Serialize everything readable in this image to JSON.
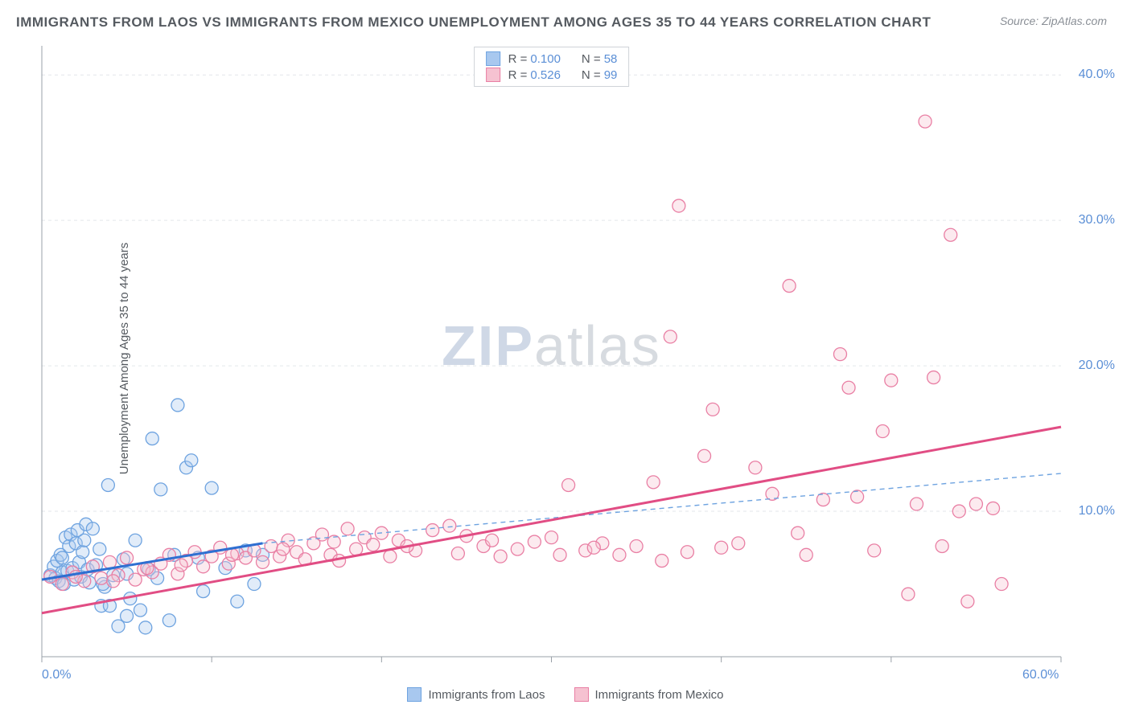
{
  "title": "IMMIGRANTS FROM LAOS VS IMMIGRANTS FROM MEXICO UNEMPLOYMENT AMONG AGES 35 TO 44 YEARS CORRELATION CHART",
  "source_label": "Source: ",
  "source_name": "ZipAtlas.com",
  "ylabel": "Unemployment Among Ages 35 to 44 years",
  "watermark_a": "ZIP",
  "watermark_b": "atlas",
  "chart": {
    "type": "scatter",
    "background_color": "#ffffff",
    "grid_color": "#e3e6ea",
    "axis_color": "#9aa0a8",
    "tick_font_color": "#5b8fd6",
    "tick_fontsize": 16,
    "title_fontsize": 17,
    "label_fontsize": 15,
    "xlim": [
      0,
      60
    ],
    "ylim": [
      0,
      42
    ],
    "x_ticks": [
      0,
      10,
      20,
      30,
      40,
      50,
      60
    ],
    "x_tick_labels_shown": {
      "0": "0.0%",
      "60": "60.0%"
    },
    "y_ticks": [
      10,
      20,
      30,
      40
    ],
    "y_tick_labels": {
      "10": "10.0%",
      "20": "20.0%",
      "30": "30.0%",
      "40": "40.0%"
    },
    "marker_radius": 8,
    "marker_fill_opacity": 0.35,
    "marker_stroke_width": 1.3,
    "series": [
      {
        "key": "laos",
        "label": "Immigrants from Laos",
        "color_fill": "#a8c8ef",
        "color_stroke": "#6ea3e0",
        "R": "0.100",
        "N": "58",
        "trend": {
          "x1": 0,
          "y1": 5.3,
          "x2": 13,
          "y2": 7.8,
          "color": "#2e6fd1",
          "width": 3,
          "dash": "none"
        },
        "trend_ext": {
          "x1": 13,
          "y1": 7.8,
          "x2": 60,
          "y2": 12.6,
          "color": "#6ea3e0",
          "width": 1.4,
          "dash": "6,5"
        },
        "points": [
          [
            0.5,
            5.6
          ],
          [
            0.7,
            6.2
          ],
          [
            0.8,
            5.4
          ],
          [
            0.9,
            6.6
          ],
          [
            1.0,
            5.2
          ],
          [
            1.1,
            7.0
          ],
          [
            1.2,
            5.8
          ],
          [
            1.2,
            6.8
          ],
          [
            1.3,
            5.0
          ],
          [
            1.4,
            8.2
          ],
          [
            1.5,
            5.9
          ],
          [
            1.6,
            7.6
          ],
          [
            1.7,
            8.4
          ],
          [
            1.8,
            6.1
          ],
          [
            1.9,
            5.3
          ],
          [
            2.0,
            7.8
          ],
          [
            2.1,
            8.7
          ],
          [
            2.2,
            6.5
          ],
          [
            2.3,
            5.5
          ],
          [
            2.4,
            7.2
          ],
          [
            2.5,
            8.0
          ],
          [
            2.6,
            9.1
          ],
          [
            2.7,
            6.0
          ],
          [
            2.8,
            5.1
          ],
          [
            3.0,
            8.8
          ],
          [
            3.2,
            6.3
          ],
          [
            3.4,
            7.4
          ],
          [
            3.5,
            3.5
          ],
          [
            3.7,
            4.8
          ],
          [
            3.9,
            11.8
          ],
          [
            4.2,
            5.6
          ],
          [
            4.5,
            2.1
          ],
          [
            4.8,
            6.7
          ],
          [
            5.0,
            2.8
          ],
          [
            5.2,
            4.0
          ],
          [
            5.5,
            8.0
          ],
          [
            5.8,
            3.2
          ],
          [
            6.1,
            2.0
          ],
          [
            6.5,
            15.0
          ],
          [
            6.8,
            5.4
          ],
          [
            7.0,
            11.5
          ],
          [
            7.5,
            2.5
          ],
          [
            7.8,
            7.0
          ],
          [
            8.0,
            17.3
          ],
          [
            8.5,
            13.0
          ],
          [
            8.8,
            13.5
          ],
          [
            9.2,
            6.8
          ],
          [
            9.5,
            4.5
          ],
          [
            10.0,
            11.6
          ],
          [
            10.8,
            6.1
          ],
          [
            11.5,
            3.8
          ],
          [
            12.0,
            7.3
          ],
          [
            12.5,
            5.0
          ],
          [
            13.0,
            7.0
          ],
          [
            5.0,
            5.7
          ],
          [
            6.3,
            6.0
          ],
          [
            4.0,
            3.5
          ],
          [
            3.6,
            5.0
          ]
        ]
      },
      {
        "key": "mexico",
        "label": "Immigrants from Mexico",
        "color_fill": "#f6c2d1",
        "color_stroke": "#e97fa4",
        "R": "0.526",
        "N": "99",
        "trend": {
          "x1": 0,
          "y1": 3.0,
          "x2": 60,
          "y2": 15.8,
          "color": "#e14d84",
          "width": 3,
          "dash": "none"
        },
        "points": [
          [
            0.5,
            5.5
          ],
          [
            1.2,
            5.0
          ],
          [
            1.8,
            5.8
          ],
          [
            2.5,
            5.2
          ],
          [
            3.0,
            6.2
          ],
          [
            3.5,
            5.4
          ],
          [
            4.0,
            6.5
          ],
          [
            4.5,
            5.6
          ],
          [
            5.0,
            6.8
          ],
          [
            5.5,
            5.3
          ],
          [
            6.0,
            6.0
          ],
          [
            6.5,
            5.8
          ],
          [
            7.0,
            6.4
          ],
          [
            7.5,
            7.0
          ],
          [
            8.0,
            5.7
          ],
          [
            8.5,
            6.6
          ],
          [
            9.0,
            7.2
          ],
          [
            9.5,
            6.2
          ],
          [
            10.0,
            6.9
          ],
          [
            10.5,
            7.5
          ],
          [
            11.0,
            6.4
          ],
          [
            11.5,
            7.1
          ],
          [
            12.0,
            6.8
          ],
          [
            12.5,
            7.3
          ],
          [
            13.0,
            6.5
          ],
          [
            13.5,
            7.6
          ],
          [
            14.0,
            6.9
          ],
          [
            14.5,
            8.0
          ],
          [
            15.0,
            7.2
          ],
          [
            15.5,
            6.7
          ],
          [
            16.0,
            7.8
          ],
          [
            16.5,
            8.4
          ],
          [
            17.0,
            7.0
          ],
          [
            17.5,
            6.6
          ],
          [
            18.0,
            8.8
          ],
          [
            18.5,
            7.4
          ],
          [
            19.0,
            8.2
          ],
          [
            19.5,
            7.7
          ],
          [
            20.0,
            8.5
          ],
          [
            20.5,
            6.9
          ],
          [
            21.0,
            8.0
          ],
          [
            22.0,
            7.3
          ],
          [
            23.0,
            8.7
          ],
          [
            24.0,
            9.0
          ],
          [
            24.5,
            7.1
          ],
          [
            25.0,
            8.3
          ],
          [
            26.0,
            7.6
          ],
          [
            27.0,
            6.9
          ],
          [
            28.0,
            7.4
          ],
          [
            29.0,
            7.9
          ],
          [
            30.0,
            8.2
          ],
          [
            30.5,
            7.0
          ],
          [
            31.0,
            11.8
          ],
          [
            32.0,
            7.3
          ],
          [
            33.0,
            7.8
          ],
          [
            34.0,
            7.0
          ],
          [
            35.0,
            7.6
          ],
          [
            36.0,
            12.0
          ],
          [
            36.5,
            6.6
          ],
          [
            37.0,
            22.0
          ],
          [
            37.5,
            31.0
          ],
          [
            38.0,
            7.2
          ],
          [
            39.0,
            13.8
          ],
          [
            39.5,
            17.0
          ],
          [
            40.0,
            7.5
          ],
          [
            41.0,
            7.8
          ],
          [
            42.0,
            13.0
          ],
          [
            43.0,
            11.2
          ],
          [
            44.0,
            25.5
          ],
          [
            44.5,
            8.5
          ],
          [
            45.0,
            7.0
          ],
          [
            46.0,
            10.8
          ],
          [
            47.0,
            20.8
          ],
          [
            47.5,
            18.5
          ],
          [
            48.0,
            11.0
          ],
          [
            49.0,
            7.3
          ],
          [
            49.5,
            15.5
          ],
          [
            50.0,
            19.0
          ],
          [
            51.0,
            4.3
          ],
          [
            51.5,
            10.5
          ],
          [
            52.0,
            36.8
          ],
          [
            52.5,
            19.2
          ],
          [
            53.0,
            7.6
          ],
          [
            53.5,
            29.0
          ],
          [
            54.0,
            10.0
          ],
          [
            54.5,
            3.8
          ],
          [
            55.0,
            10.5
          ],
          [
            56.0,
            10.2
          ],
          [
            56.5,
            5.0
          ],
          [
            2.0,
            5.5
          ],
          [
            4.2,
            5.2
          ],
          [
            6.2,
            6.1
          ],
          [
            8.2,
            6.3
          ],
          [
            11.2,
            7.0
          ],
          [
            14.2,
            7.4
          ],
          [
            17.2,
            7.9
          ],
          [
            21.5,
            7.6
          ],
          [
            26.5,
            8.0
          ],
          [
            32.5,
            7.5
          ]
        ]
      }
    ]
  },
  "bottom_legend": [
    {
      "key": "laos",
      "label": "Immigrants from Laos"
    },
    {
      "key": "mexico",
      "label": "Immigrants from Mexico"
    }
  ]
}
